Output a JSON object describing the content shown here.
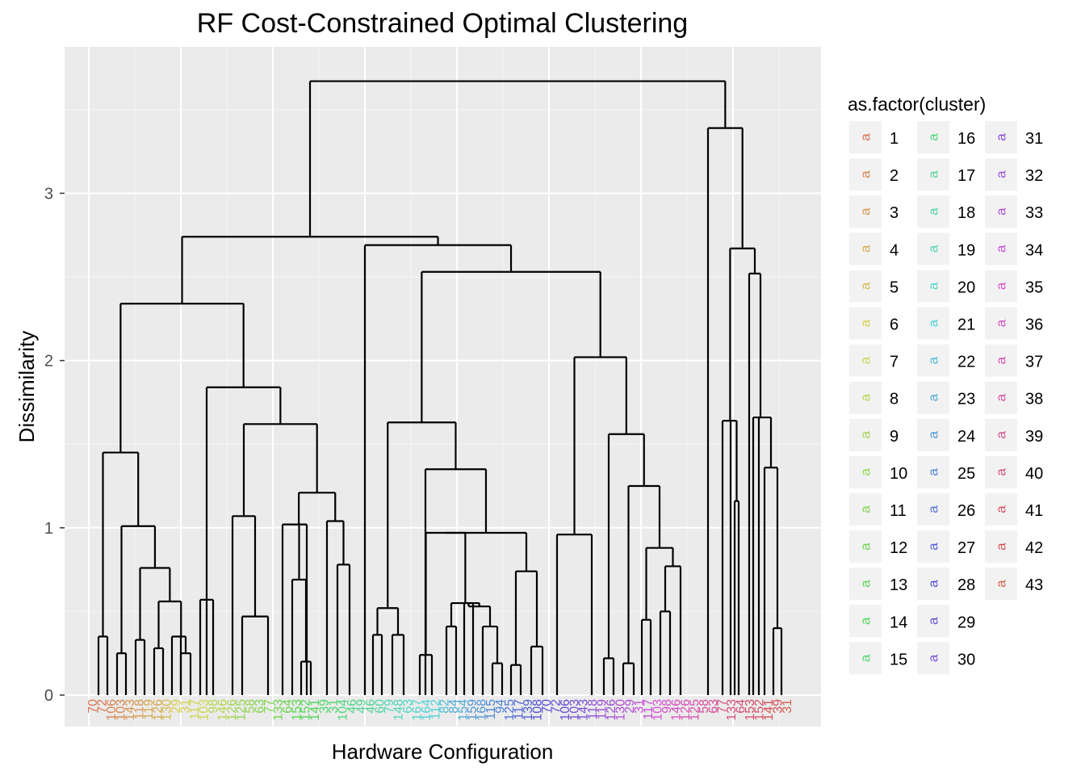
{
  "chart_data": {
    "type": "dendrogram",
    "title": "RF Cost-Constrained Optimal Clustering",
    "xlabel": "Hardware Configuration",
    "ylabel": "Dissimilarity",
    "ylim": [
      -0.12,
      3.8
    ],
    "y_ticks": [
      0,
      1,
      2,
      3
    ],
    "grid": true,
    "legend": {
      "title": "as.factor(cluster)",
      "position": "right",
      "key_glyph": "a",
      "entries": [
        "1",
        "2",
        "3",
        "4",
        "5",
        "6",
        "7",
        "8",
        "9",
        "10",
        "11",
        "12",
        "13",
        "14",
        "15",
        "16",
        "17",
        "18",
        "19",
        "20",
        "21",
        "22",
        "23",
        "24",
        "25",
        "26",
        "27",
        "28",
        "29",
        "30",
        "31",
        "32",
        "33",
        "34",
        "35",
        "36",
        "37",
        "38",
        "39",
        "40",
        "41",
        "42",
        "43"
      ]
    },
    "leaf_count": 76,
    "leaf_label_sample": [
      "70",
      "72",
      "106",
      "103",
      "143",
      "118",
      "119",
      "126",
      "130",
      "29",
      "31",
      "117",
      "103",
      "98",
      "146",
      "126",
      "125",
      "58",
      "63",
      "77",
      "133",
      "64",
      "153",
      "152",
      "141",
      "39",
      "31",
      "104",
      "46",
      "49",
      "46",
      "60",
      "79",
      "148",
      "63",
      "167",
      "164",
      "112",
      "82",
      "84",
      "154",
      "159",
      "168",
      "115",
      "94",
      "125",
      "117",
      "139",
      "108"
    ],
    "merge_heights": {
      "root": 3.67,
      "left_main": 2.74,
      "right_main": 3.39,
      "left_group": 2.34,
      "mid_group": 2.69,
      "mid_sub": 2.53,
      "right_sub": 2.67,
      "right_sub2": 2.52
    }
  }
}
